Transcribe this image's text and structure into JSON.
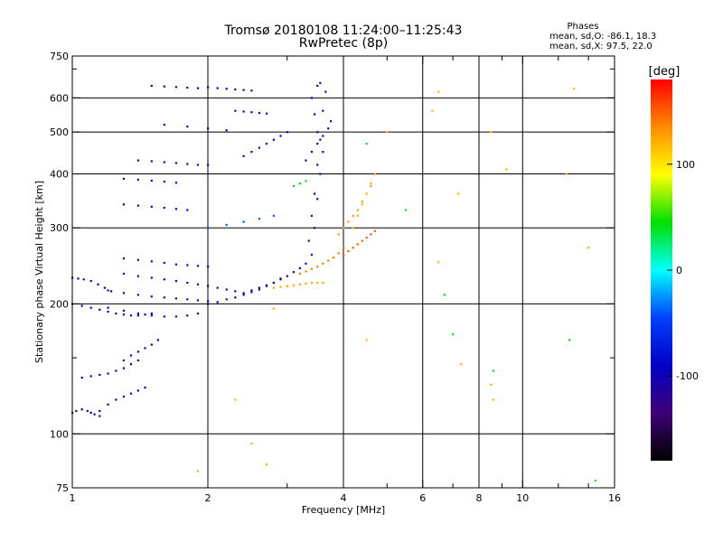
{
  "chart_data": {
    "type": "scatter",
    "title": "Tromsø 20180108 11:24:00–11:25:43",
    "subtitle": "RwPretec (8p)",
    "phase_box": {
      "heading": "Phases",
      "line_o": "mean, sd,O: -86.1, 18.3",
      "line_x": "mean, sd,X:  97.5, 22.0"
    },
    "xlabel": "Frequency [MHz]",
    "ylabel": "Stationary phase Virtual Height [km]",
    "xscale": "log",
    "yscale": "log",
    "xlim": [
      1,
      16
    ],
    "ylim": [
      75,
      750
    ],
    "grid": true,
    "x_ticks": [
      {
        "v": 1,
        "label": "1",
        "grid": false
      },
      {
        "v": 2,
        "label": "2",
        "grid": true
      },
      {
        "v": 4,
        "label": "4",
        "grid": true
      },
      {
        "v": 6,
        "label": "6",
        "grid": true
      },
      {
        "v": 8,
        "label": "8",
        "grid": true
      },
      {
        "v": 10,
        "label": "10",
        "grid": true
      },
      {
        "v": 16,
        "label": "16",
        "grid": false
      }
    ],
    "x_minor_ticks": [
      3,
      5,
      7,
      9,
      12,
      14
    ],
    "y_ticks": [
      {
        "v": 75,
        "label": "75",
        "grid": false
      },
      {
        "v": 100,
        "label": "100",
        "grid": true
      },
      {
        "v": 200,
        "label": "200",
        "grid": true
      },
      {
        "v": 300,
        "label": "300",
        "grid": true
      },
      {
        "v": 400,
        "label": "400",
        "grid": true
      },
      {
        "v": 500,
        "label": "500",
        "grid": true
      },
      {
        "v": 600,
        "label": "600",
        "grid": true
      },
      {
        "v": 750,
        "label": "750",
        "grid": false
      }
    ],
    "y_minor_ticks": [
      150,
      700
    ],
    "colorbar": {
      "label": "[deg]",
      "range": [
        -180,
        180
      ],
      "ticks": [
        {
          "v": 100,
          "label": "100"
        },
        {
          "v": 0,
          "label": "0"
        },
        {
          "v": -100,
          "label": "-100"
        }
      ],
      "stops": [
        "#ff0000",
        "#ff8c00",
        "#ffff00",
        "#00e000",
        "#00ffff",
        "#0040ff",
        "#0000c8",
        "#400078",
        "#000000"
      ]
    },
    "series": [
      {
        "x": [
          1.0,
          1.02,
          1.05,
          1.08,
          1.1,
          1.12,
          1.15
        ],
        "y": [
          112,
          113,
          114,
          113,
          112,
          111,
          110
        ],
        "phase": -110
      },
      {
        "x": [
          1.15,
          1.2,
          1.25,
          1.3,
          1.35,
          1.4,
          1.45
        ],
        "y": [
          113,
          117,
          120,
          122,
          124,
          126,
          128
        ],
        "phase": -105
      },
      {
        "x": [
          1.05,
          1.1,
          1.15,
          1.2,
          1.25,
          1.3,
          1.35,
          1.4
        ],
        "y": [
          135,
          136,
          137,
          138,
          140,
          142,
          145,
          148
        ],
        "phase": -95
      },
      {
        "x": [
          1.3,
          1.35,
          1.4,
          1.45,
          1.5,
          1.55
        ],
        "y": [
          148,
          152,
          155,
          158,
          161,
          165
        ],
        "phase": -105
      },
      {
        "x": [
          1.0,
          1.03,
          1.06,
          1.1,
          1.14,
          1.18,
          1.22
        ],
        "y": [
          230,
          229,
          228,
          226,
          222,
          218,
          214
        ],
        "phase": -95
      },
      {
        "x": [
          1.0,
          1.05,
          1.1,
          1.15,
          1.2,
          1.25,
          1.3,
          1.35,
          1.4,
          1.45,
          1.5
        ],
        "y": [
          200,
          198,
          196,
          194,
          192,
          190,
          189,
          188,
          188,
          189,
          190
        ],
        "phase": -100
      },
      {
        "x": [
          1.2,
          1.3,
          1.4,
          1.5,
          1.6,
          1.7,
          1.8,
          1.9
        ],
        "y": [
          196,
          193,
          190,
          188,
          187,
          187,
          188,
          190
        ],
        "phase": -110
      },
      {
        "x": [
          1.2,
          1.3,
          1.4,
          1.5,
          1.6,
          1.7,
          1.8,
          1.9,
          2.0
        ],
        "y": [
          215,
          212,
          210,
          208,
          207,
          206,
          205,
          204,
          203
        ],
        "phase": -110
      },
      {
        "x": [
          1.3,
          1.4,
          1.5,
          1.6,
          1.7,
          1.8,
          1.9,
          2.0,
          2.1,
          2.2,
          2.3
        ],
        "y": [
          235,
          232,
          230,
          228,
          226,
          224,
          222,
          220,
          218,
          216,
          214
        ],
        "phase": -105
      },
      {
        "x": [
          1.3,
          1.4,
          1.5,
          1.6,
          1.7,
          1.8,
          1.9,
          2.0
        ],
        "y": [
          255,
          253,
          251,
          249,
          247,
          246,
          245,
          244
        ],
        "phase": -105
      },
      {
        "x": [
          2.0,
          2.1,
          2.2,
          2.3,
          2.4,
          2.5,
          2.6,
          2.7,
          2.8,
          2.9
        ],
        "y": [
          200,
          202,
          205,
          207,
          210,
          213,
          216,
          220,
          224,
          229
        ],
        "phase": -110
      },
      {
        "x": [
          2.4,
          2.5,
          2.6,
          2.7,
          2.8,
          2.9,
          3.0,
          3.1,
          3.2,
          3.3
        ],
        "y": [
          212,
          215,
          218,
          221,
          224,
          228,
          232,
          237,
          242,
          248
        ],
        "phase": -105
      },
      {
        "x": [
          2.8,
          2.9,
          3.0,
          3.1,
          3.2,
          3.3,
          3.4,
          3.5,
          3.6
        ],
        "y": [
          218,
          219,
          220,
          221,
          222,
          223,
          224,
          224,
          224
        ],
        "phase": 125
      },
      {
        "x": [
          3.2,
          3.3,
          3.4,
          3.5,
          3.6,
          3.7,
          3.8,
          3.9,
          4.0
        ],
        "y": [
          235,
          238,
          241,
          244,
          248,
          252,
          256,
          262,
          270
        ],
        "phase": 140
      },
      {
        "x": [
          3.4,
          3.45,
          3.5,
          3.55,
          3.6,
          3.5,
          3.45,
          3.4,
          3.5,
          3.55
        ],
        "y": [
          260,
          300,
          350,
          400,
          450,
          500,
          550,
          600,
          640,
          650
        ],
        "phase": -115
      },
      {
        "x": [
          3.35,
          3.4,
          3.45,
          3.5,
          3.55,
          3.6,
          3.65
        ],
        "y": [
          280,
          320,
          360,
          420,
          480,
          560,
          620
        ],
        "phase": -125
      },
      {
        "x": [
          3.3,
          3.4,
          3.5,
          3.6,
          3.7,
          3.75
        ],
        "y": [
          430,
          450,
          470,
          490,
          510,
          530
        ],
        "phase": -110
      },
      {
        "x": [
          3.9,
          4.0,
          4.1,
          4.2,
          4.3,
          4.4,
          4.5,
          4.6
        ],
        "y": [
          290,
          300,
          310,
          320,
          330,
          345,
          360,
          375
        ],
        "phase": 130
      },
      {
        "x": [
          4.0,
          4.1,
          4.2,
          4.3,
          4.4,
          4.5,
          4.6,
          4.7
        ],
        "y": [
          260,
          265,
          270,
          275,
          280,
          285,
          290,
          295
        ],
        "phase": 150
      },
      {
        "x": [
          4.2,
          4.3,
          4.4,
          4.5,
          4.6,
          4.7
        ],
        "y": [
          300,
          320,
          340,
          360,
          380,
          400
        ],
        "phase": 120
      },
      {
        "x": [
          1.4,
          1.5,
          1.6,
          1.7,
          1.8,
          1.9,
          2.0
        ],
        "y": [
          430,
          428,
          426,
          424,
          422,
          420,
          420
        ],
        "phase": -110
      },
      {
        "x": [
          1.3,
          1.4,
          1.5,
          1.6,
          1.7,
          1.8
        ],
        "y": [
          340,
          338,
          336,
          334,
          332,
          330
        ],
        "phase": -100
      },
      {
        "x": [
          1.3,
          1.4,
          1.5,
          1.6,
          1.7
        ],
        "y": [
          390,
          388,
          386,
          384,
          382
        ],
        "phase": -105
      },
      {
        "x": [
          1.5,
          1.6,
          1.7,
          1.8,
          1.9
        ],
        "y": [
          640,
          638,
          636,
          634,
          632
        ],
        "phase": -110
      },
      {
        "x": [
          2.0,
          2.1,
          2.2,
          2.3,
          2.4,
          2.5
        ],
        "y": [
          635,
          632,
          630,
          628,
          626,
          624
        ],
        "phase": -110
      },
      {
        "x": [
          2.3,
          2.4,
          2.5,
          2.6,
          2.7
        ],
        "y": [
          560,
          558,
          556,
          554,
          552
        ],
        "phase": -105
      },
      {
        "x": [
          2.4,
          2.5,
          2.6,
          2.7,
          2.8,
          2.9,
          3.0
        ],
        "y": [
          440,
          450,
          460,
          470,
          480,
          490,
          500
        ],
        "phase": -100
      },
      {
        "x": [
          2.0,
          2.2,
          2.4,
          2.6,
          2.8
        ],
        "y": [
          300,
          305,
          310,
          315,
          320
        ],
        "phase": -40
      },
      {
        "x": [
          1.6,
          1.8,
          2.0,
          2.2
        ],
        "y": [
          520,
          515,
          510,
          505
        ],
        "phase": -110
      },
      {
        "x": [
          6.3,
          6.5,
          7.2,
          8.5,
          8.5,
          9.2,
          12.5,
          13.0,
          14.0,
          6.5,
          5.0,
          2.5,
          2.7,
          2.3,
          1.9,
          8.6,
          7.3,
          2.8,
          4.5,
          3.0
        ],
        "y": [
          560,
          620,
          360,
          500,
          130,
          410,
          400,
          630,
          270,
          250,
          500,
          95,
          85,
          120,
          82,
          120,
          145,
          195,
          165,
          220
        ],
        "phase": 120
      },
      {
        "x": [
          3.1,
          3.2,
          3.3,
          4.5,
          5.5,
          6.7,
          7.0,
          8.6,
          12.7,
          14.5
        ],
        "y": [
          375,
          380,
          385,
          470,
          330,
          210,
          170,
          140,
          165,
          78
        ],
        "phase": 40
      }
    ]
  }
}
